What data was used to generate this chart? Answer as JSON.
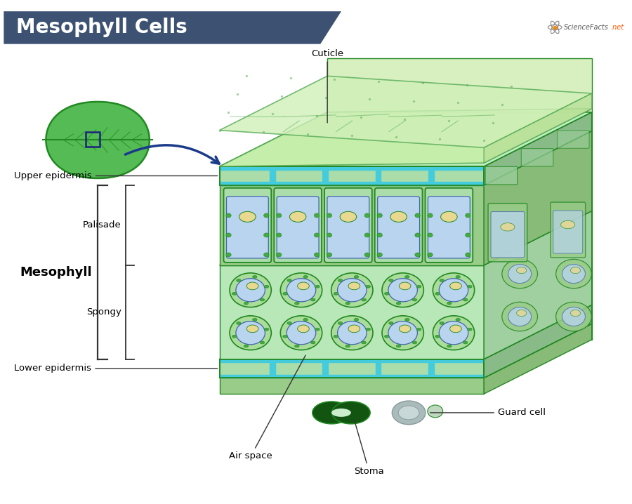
{
  "title": "Mesophyll Cells",
  "title_bg_color": "#3d5272",
  "title_text_color": "#ffffff",
  "bg_color": "#ffffff",
  "labels": {
    "cuticle": "Cuticle",
    "upper_epidermis": "Upper epidermis",
    "palisade": "Palisade",
    "mesophyll": "Mesophyll",
    "spongy": "Spongy",
    "lower_epidermis": "Lower epidermis",
    "air_space": "Air space",
    "stoma": "Stoma",
    "guard_cell": "Guard cell"
  },
  "colors": {
    "light_green": "#aaddaa",
    "medium_green": "#55aa55",
    "dark_green": "#228822",
    "pale_green": "#cceecc",
    "cuticle_top": "#c0eaaa",
    "cuticle_side": "#a8d890",
    "upper_epi": "#88cc88",
    "upper_epi_side": "#70b870",
    "cyan_wall": "#44ccdd",
    "palisade_bg": "#88cc88",
    "palisade_cell": "#99dd99",
    "spongy_bg": "#99dd99",
    "spongy_cell": "#aaddaa",
    "lower_epi": "#88cc88",
    "lower_epi_side": "#70b870",
    "vacuole": "#b8d4ee",
    "vacuole_outline": "#4466aa",
    "nucleus": "#e8d890",
    "chloroplast": "#44aa44",
    "stoma_green": "#115511",
    "guard_gray": "#aabbbb",
    "bracket": "#333333",
    "leaf_fill": "#55bb55",
    "leaf_edge": "#228822",
    "arrow_blue": "#1a3a8a"
  }
}
